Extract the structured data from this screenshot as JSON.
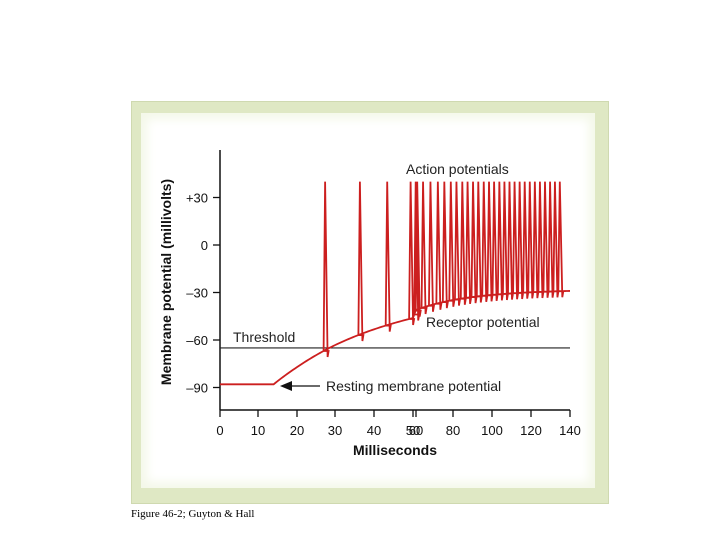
{
  "chart_data": {
    "type": "line",
    "xlabel": "Milliseconds",
    "ylabel": "Membrane potential (millivolts)",
    "xlim": [
      0,
      140
    ],
    "ylim": [
      -100,
      60
    ],
    "x_ticks": [
      0,
      10,
      20,
      30,
      40,
      50,
      60,
      80,
      100,
      120,
      140
    ],
    "y_ticks": [
      {
        "value": 30,
        "label": "+30"
      },
      {
        "value": 0,
        "label": "0"
      },
      {
        "value": -30,
        "label": "–30"
      },
      {
        "value": -60,
        "label": "–60"
      },
      {
        "value": -90,
        "label": "–90"
      }
    ],
    "threshold": {
      "value": -65,
      "label": "Threshold"
    },
    "resting_potential": -88,
    "receptor_potential_end": -29,
    "action_potential_peak": 40,
    "stimulus_onset_ms": 14,
    "action_potential_times_ms": [
      27,
      36,
      43,
      49,
      54,
      59,
      63,
      67,
      71,
      74.5,
      78,
      81,
      84,
      86.7,
      89.5,
      92.2,
      95,
      97.7,
      100.3,
      103,
      105.6,
      108.2,
      110.8,
      113.4,
      116,
      118.6,
      121.2,
      123.8,
      126.4,
      129,
      131.5,
      134
    ],
    "series_color": "#cc1f1f",
    "annotations": {
      "action_potentials": "Action potentials",
      "receptor_potential": "Receptor potential",
      "resting_membrane_potential": "Resting membrane potential"
    }
  },
  "caption": "Figure 46-2; Guyton & Hall"
}
